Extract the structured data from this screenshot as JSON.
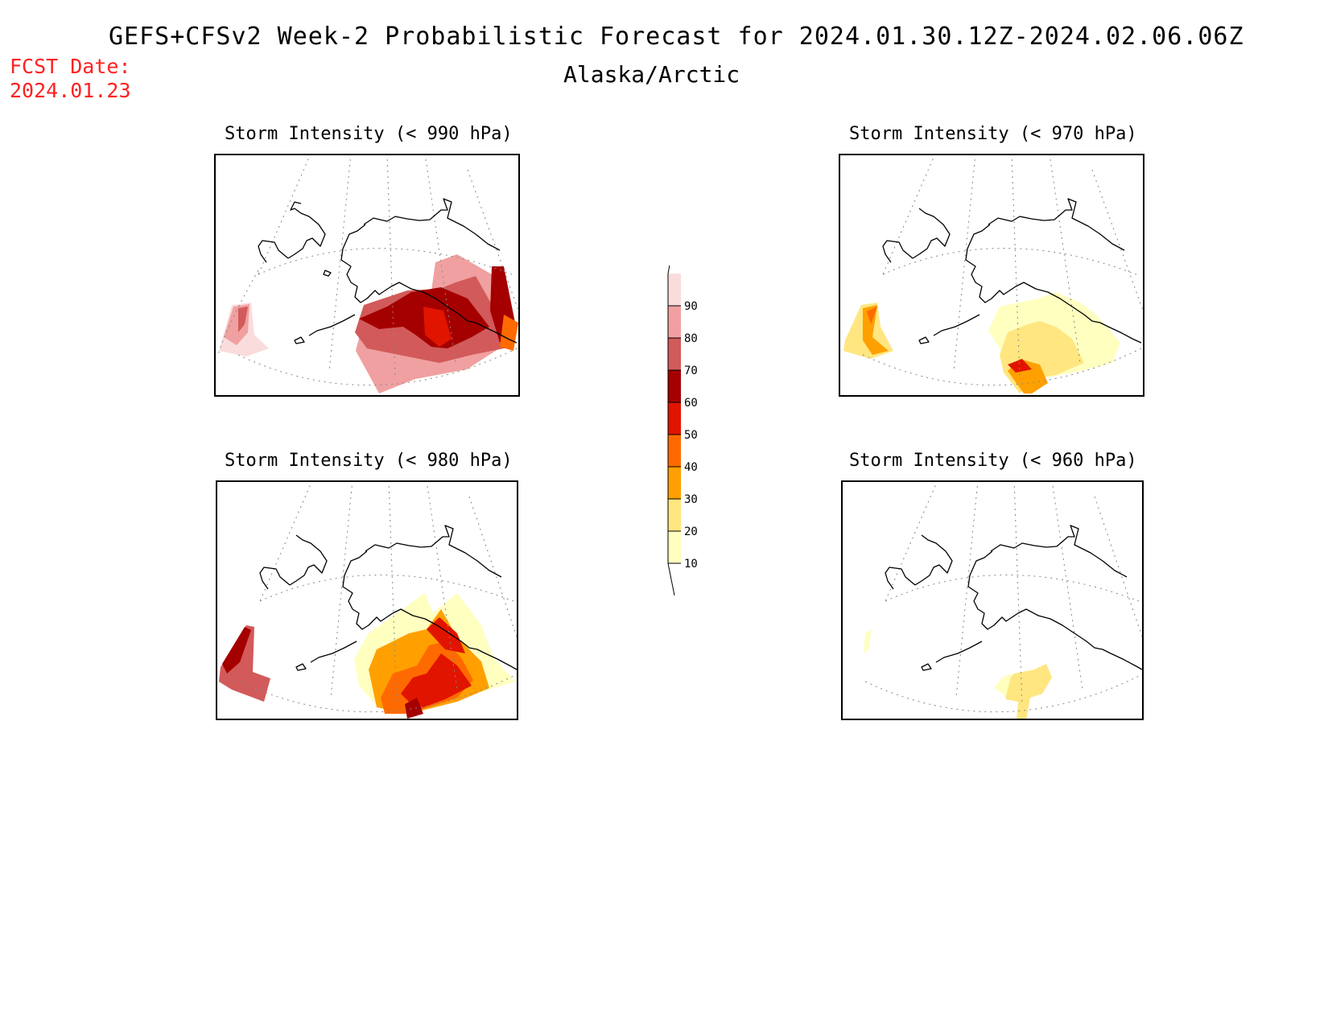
{
  "header": {
    "title": "GEFS+CFSv2 Week-2 Probabilistic Forecast for 2024.01.30.12Z-2024.02.06.06Z",
    "region": "Alaska/Arctic",
    "fcst_label": "FCST Date:",
    "fcst_date": "2024.01.23"
  },
  "panels": [
    {
      "title": "Storm Intensity (< 990 hPa)"
    },
    {
      "title": "Storm Intensity (< 970 hPa)"
    },
    {
      "title": "Storm Intensity (< 980 hPa)"
    },
    {
      "title": "Storm Intensity (< 960 hPa)"
    }
  ],
  "legend": {
    "levels": [
      10,
      20,
      30,
      40,
      50,
      60,
      70,
      80,
      90
    ],
    "colors": [
      "#ffffc0",
      "#ffe680",
      "#ffa000",
      "#ff6a00",
      "#e11400",
      "#a50000",
      "#d25a5a",
      "#f0a0a0",
      "#fbdcdc"
    ]
  }
}
